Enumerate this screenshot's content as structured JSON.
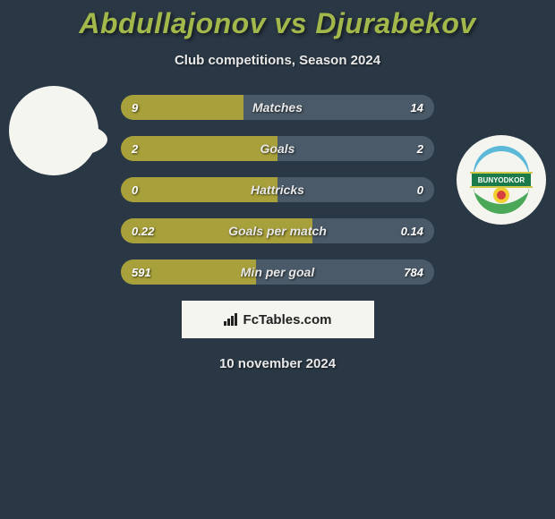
{
  "header": {
    "title": "Abdullajonov vs Djurabekov",
    "subtitle": "Club competitions, Season 2024"
  },
  "colors": {
    "bar_left": "#a8a03a",
    "bar_right": "#4a5a68",
    "bar_track": "#3a4a58",
    "background": "#2a3845",
    "accent": "#a3b84a",
    "text_light": "#e8e8e8"
  },
  "rows": [
    {
      "label": "Matches",
      "left_val": "9",
      "right_val": "14",
      "left_pct": 39,
      "right_pct": 61
    },
    {
      "label": "Goals",
      "left_val": "2",
      "right_val": "2",
      "left_pct": 50,
      "right_pct": 50
    },
    {
      "label": "Hattricks",
      "left_val": "0",
      "right_val": "0",
      "left_pct": 50,
      "right_pct": 50
    },
    {
      "label": "Goals per match",
      "left_val": "0.22",
      "right_val": "0.14",
      "left_pct": 61,
      "right_pct": 39
    },
    {
      "label": "Min per goal",
      "left_val": "591",
      "right_val": "784",
      "left_pct": 43,
      "right_pct": 57
    }
  ],
  "footer": {
    "brand": "FcTables.com",
    "date": "10 november 2024"
  },
  "badge": {
    "name": "BUNYODKOR",
    "arc_color": "#5bb8d8",
    "band_color": "#1a7a4a",
    "sun_color": "#f0d030",
    "ball_color": "#d84040"
  }
}
